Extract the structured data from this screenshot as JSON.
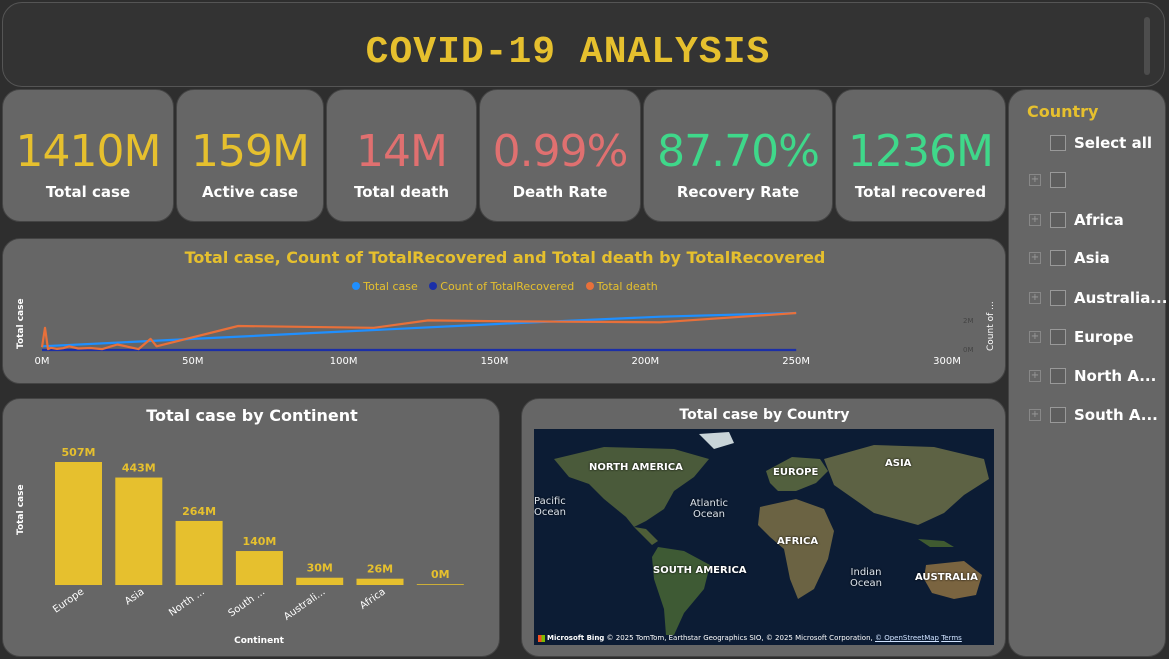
{
  "title": "COVID-19 ANALYSIS",
  "kpis": [
    {
      "value": "1410M",
      "label": "Total case",
      "color": "#e6c02e"
    },
    {
      "value": "159M",
      "label": "Active case",
      "color": "#e6c02e"
    },
    {
      "value": "14M",
      "label": "Total death",
      "color": "#e07070"
    },
    {
      "value": "0.99%",
      "label": "Death Rate",
      "color": "#e07070"
    },
    {
      "value": "87.70%",
      "label": "Recovery Rate",
      "color": "#3fd88a"
    },
    {
      "value": "1236M",
      "label": "Total recovered",
      "color": "#3fd88a"
    }
  ],
  "line_chart": {
    "title": "Total case, Count of TotalRecovered and Total death by TotalRecovered",
    "ylabel": "Total case",
    "ylabel_right": "Count of ...",
    "right_ticks": [
      "2M",
      "0M"
    ],
    "legend": [
      {
        "name": "Total case",
        "color": "#1f8fff"
      },
      {
        "name": "Count of TotalRecovered",
        "color": "#1b2fa8"
      },
      {
        "name": "Total death",
        "color": "#e8703a"
      }
    ]
  },
  "bar_chart": {
    "title": "Total case by Continent",
    "ylabel": "Total case",
    "xlabel": "Continent"
  },
  "map": {
    "title": "Total case by Country",
    "labels": [
      "NORTH AMERICA",
      "EUROPE",
      "ASIA",
      "AFRICA",
      "SOUTH AMERICA",
      "AUSTRALIA"
    ],
    "oceans": [
      "Pacific Ocean",
      "Atlantic Ocean",
      "Indian Ocean"
    ],
    "footer_brand": "Microsoft Bing",
    "footer_text": "© 2025 TomTom, Earthstar Geographics SIO, © 2025 Microsoft Corporation,",
    "footer_link1": "© OpenStreetMap",
    "footer_link2": "Terms"
  },
  "slicer": {
    "title": "Country",
    "select_all": "Select all",
    "items": [
      "",
      "Africa",
      "Asia",
      "Australia...",
      "Europe",
      "North A...",
      "South A..."
    ]
  },
  "chart_data": [
    {
      "type": "line",
      "title": "Total case, Count of TotalRecovered and Total death by TotalRecovered",
      "xlabel": "",
      "ylabel": "Total case",
      "x_ticks": [
        "0M",
        "50M",
        "100M",
        "150M",
        "200M",
        "250M",
        "300M"
      ],
      "xlim": [
        0,
        300000000
      ],
      "series": [
        {
          "name": "Total case",
          "x": [
            0,
            25000000,
            50000000,
            100000000,
            150000000,
            205000000,
            250000000
          ],
          "values": [
            2,
            4,
            6,
            10,
            14,
            18,
            20
          ]
        },
        {
          "name": "Count of TotalRecovered",
          "x": [
            0,
            50000000,
            100000000,
            150000000,
            200000000,
            250000000
          ],
          "values": [
            0,
            0,
            0,
            0,
            0,
            0
          ]
        },
        {
          "name": "Total death",
          "x": [
            0,
            1000000,
            2000000,
            3000000,
            5000000,
            7000000,
            9000000,
            12000000,
            16000000,
            20000000,
            25000000,
            32000000,
            36000000,
            38000000,
            65000000,
            110000000,
            128000000,
            155000000,
            205000000,
            250000000
          ],
          "values": [
            1.5,
            12,
            0.5,
            1.2,
            0.6,
            1,
            2,
            0.8,
            1.1,
            0.5,
            3,
            0.5,
            6,
            2,
            13,
            12,
            16,
            15.5,
            15,
            20
          ]
        }
      ]
    },
    {
      "type": "bar",
      "title": "Total case by Continent",
      "xlabel": "Continent",
      "ylabel": "Total case",
      "categories": [
        "Europe",
        "Asia",
        "North ...",
        "South ...",
        "Australi...",
        "Africa",
        ""
      ],
      "values": [
        507,
        443,
        264,
        140,
        30,
        26,
        0
      ],
      "data_labels": [
        "507M",
        "443M",
        "264M",
        "140M",
        "30M",
        "26M",
        "0M"
      ],
      "ylim": [
        0,
        507
      ]
    }
  ]
}
